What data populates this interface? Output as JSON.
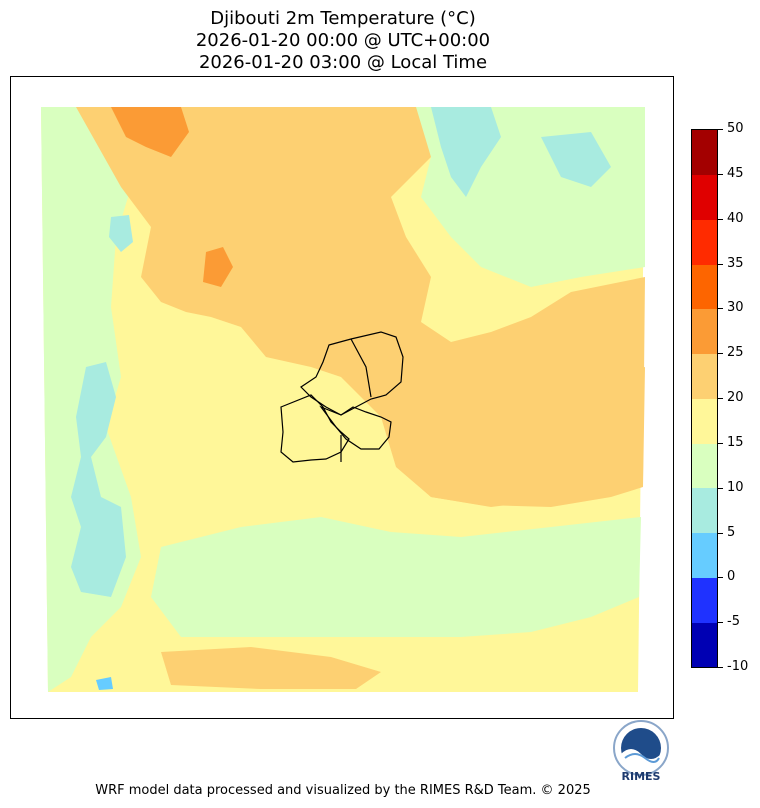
{
  "title": {
    "line1": "Djibouti 2m Temperature (°C)",
    "line2": "2026-01-20 00:00 @ UTC+00:00",
    "line3": "2026-01-20 03:00 @ Local Time"
  },
  "colorbar": {
    "ticks": [
      "50",
      "45",
      "40",
      "35",
      "30",
      "25",
      "20",
      "15",
      "10",
      "5",
      "0",
      "-5",
      "-10"
    ],
    "levels": [
      {
        "range": "-10 to -5",
        "color": "#0000b3"
      },
      {
        "range": "-5 to 0",
        "color": "#1f32ff"
      },
      {
        "range": "0 to 5",
        "color": "#66ccff"
      },
      {
        "range": "5 to 10",
        "color": "#a8ebe0"
      },
      {
        "range": "10 to 15",
        "color": "#d9ffbf"
      },
      {
        "range": "15 to 20",
        "color": "#fff799"
      },
      {
        "range": "20 to 25",
        "color": "#fdd072"
      },
      {
        "range": "25 to 30",
        "color": "#fb9b35"
      },
      {
        "range": "30 to 35",
        "color": "#fd6500"
      },
      {
        "range": "35 to 40",
        "color": "#ff2b00"
      },
      {
        "range": "40 to 45",
        "color": "#e00000"
      },
      {
        "range": "45 to 50",
        "color": "#a30000"
      }
    ]
  },
  "map": {
    "region": "Djibouti",
    "variable": "2m Temperature",
    "unit": "°C"
  },
  "logo": {
    "text": "RIMES",
    "icon": "rimes-logo-icon"
  },
  "footer": {
    "text": "WRF model data processed and visualized by the RIMES R&D Team. © 2025"
  }
}
